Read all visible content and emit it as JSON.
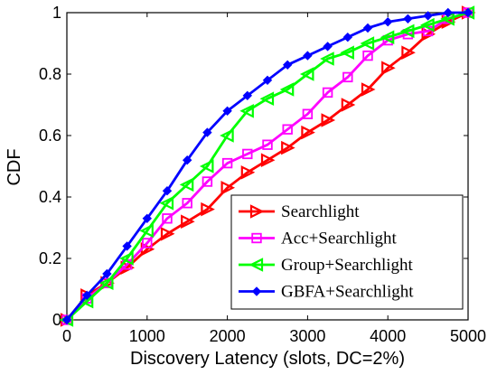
{
  "chart_data": {
    "type": "line",
    "xlabel": "Discovery Latency (slots, DC=2%)",
    "ylabel": "CDF",
    "xlim": [
      0,
      5000
    ],
    "ylim": [
      0,
      1
    ],
    "xticks": [
      0,
      1000,
      2000,
      3000,
      4000,
      5000
    ],
    "yticks": [
      0,
      0.2,
      0.4,
      0.6,
      0.8,
      1
    ],
    "xtick_labels": [
      "0",
      "1000",
      "2000",
      "3000",
      "4000",
      "5000"
    ],
    "ytick_labels": [
      "0",
      "0.2",
      "0.4",
      "0.6",
      "0.8",
      "1"
    ],
    "grid": false,
    "legend_position": "bottom-right",
    "series": [
      {
        "name": "Searchlight",
        "color": "#ff0000",
        "marker": "triangle-right",
        "x": [
          0,
          250,
          500,
          750,
          1000,
          1250,
          1500,
          1750,
          2000,
          2250,
          2500,
          2750,
          3000,
          3250,
          3500,
          3750,
          4000,
          4250,
          4500,
          4750,
          5000
        ],
        "y": [
          0,
          0.08,
          0.12,
          0.17,
          0.23,
          0.28,
          0.32,
          0.36,
          0.43,
          0.48,
          0.52,
          0.56,
          0.61,
          0.65,
          0.7,
          0.75,
          0.82,
          0.87,
          0.93,
          0.97,
          1.0
        ]
      },
      {
        "name": "Acc+Searchlight",
        "color": "#ff00ff",
        "marker": "square",
        "x": [
          0,
          250,
          500,
          750,
          1000,
          1250,
          1500,
          1750,
          2000,
          2250,
          2500,
          2750,
          3000,
          3250,
          3500,
          3750,
          4000,
          4250,
          4500,
          4750,
          5000
        ],
        "y": [
          0,
          0.07,
          0.12,
          0.18,
          0.25,
          0.33,
          0.38,
          0.45,
          0.51,
          0.54,
          0.57,
          0.62,
          0.67,
          0.74,
          0.79,
          0.86,
          0.91,
          0.93,
          0.94,
          0.98,
          1.0
        ]
      },
      {
        "name": "Group+Searchlight",
        "color": "#00ff00",
        "marker": "triangle-left",
        "x": [
          0,
          250,
          500,
          750,
          1000,
          1250,
          1500,
          1750,
          2000,
          2250,
          2500,
          2750,
          3000,
          3250,
          3500,
          3750,
          4000,
          4250,
          4500,
          4750,
          5000
        ],
        "y": [
          0,
          0.06,
          0.12,
          0.2,
          0.29,
          0.38,
          0.44,
          0.5,
          0.6,
          0.68,
          0.72,
          0.75,
          0.8,
          0.85,
          0.87,
          0.9,
          0.92,
          0.94,
          0.96,
          0.98,
          1.0
        ]
      },
      {
        "name": "GBFA+Searchlight",
        "color": "#0000ff",
        "marker": "diamond",
        "x": [
          0,
          250,
          500,
          750,
          1000,
          1250,
          1500,
          1750,
          2000,
          2250,
          2500,
          2750,
          3000,
          3250,
          3500,
          3750,
          4000,
          4250,
          4500,
          4750,
          5000
        ],
        "y": [
          0,
          0.08,
          0.15,
          0.24,
          0.33,
          0.42,
          0.52,
          0.61,
          0.68,
          0.73,
          0.78,
          0.83,
          0.86,
          0.89,
          0.92,
          0.95,
          0.97,
          0.98,
          0.99,
          1.0,
          1.0
        ]
      }
    ]
  }
}
